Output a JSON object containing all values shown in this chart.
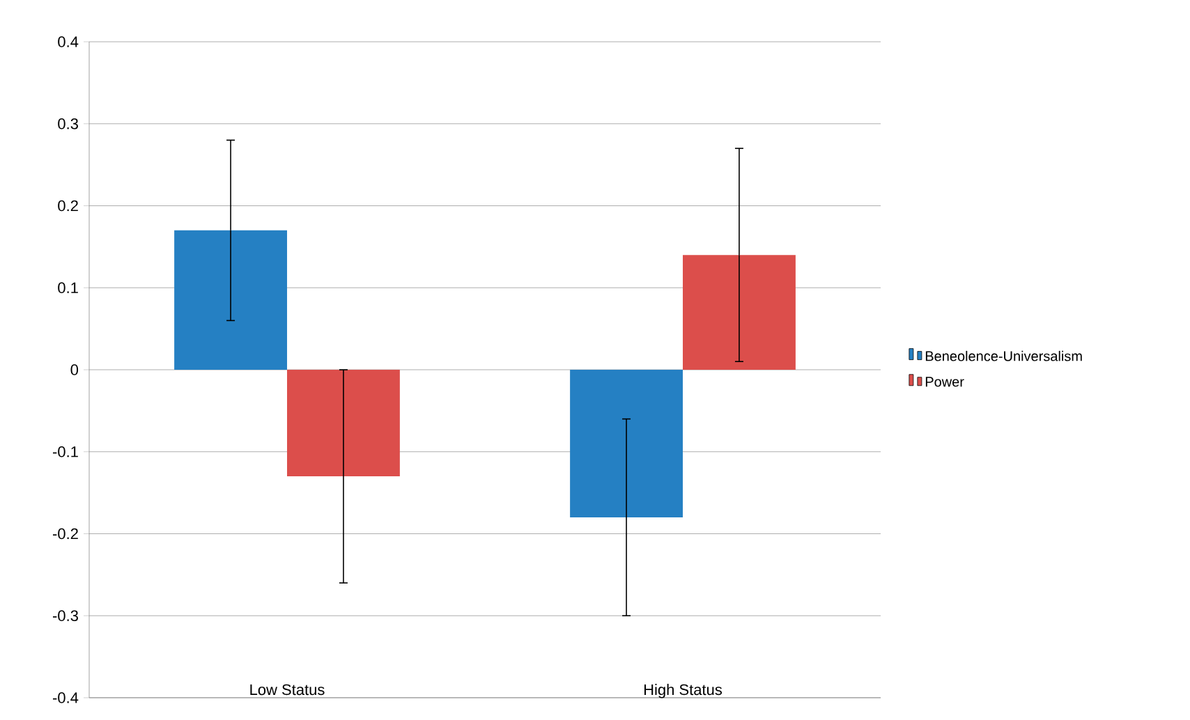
{
  "chart_data": {
    "type": "bar",
    "categories": [
      "Low Status",
      "High Status"
    ],
    "series": [
      {
        "name": "Beneolence-Universalism",
        "color": "#2580c3",
        "values": [
          0.17,
          -0.18
        ],
        "errors": [
          0.11,
          0.12
        ]
      },
      {
        "name": "Power",
        "color": "#dc4e4b",
        "values": [
          -0.13,
          0.14
        ],
        "errors": [
          0.13,
          0.13
        ]
      }
    ],
    "ylim": [
      -0.4,
      0.4
    ],
    "yticks": [
      -0.4,
      -0.3,
      -0.2,
      -0.1,
      0,
      0.1,
      0.2,
      0.3,
      0.4
    ],
    "grid": "y",
    "legend": "right"
  }
}
